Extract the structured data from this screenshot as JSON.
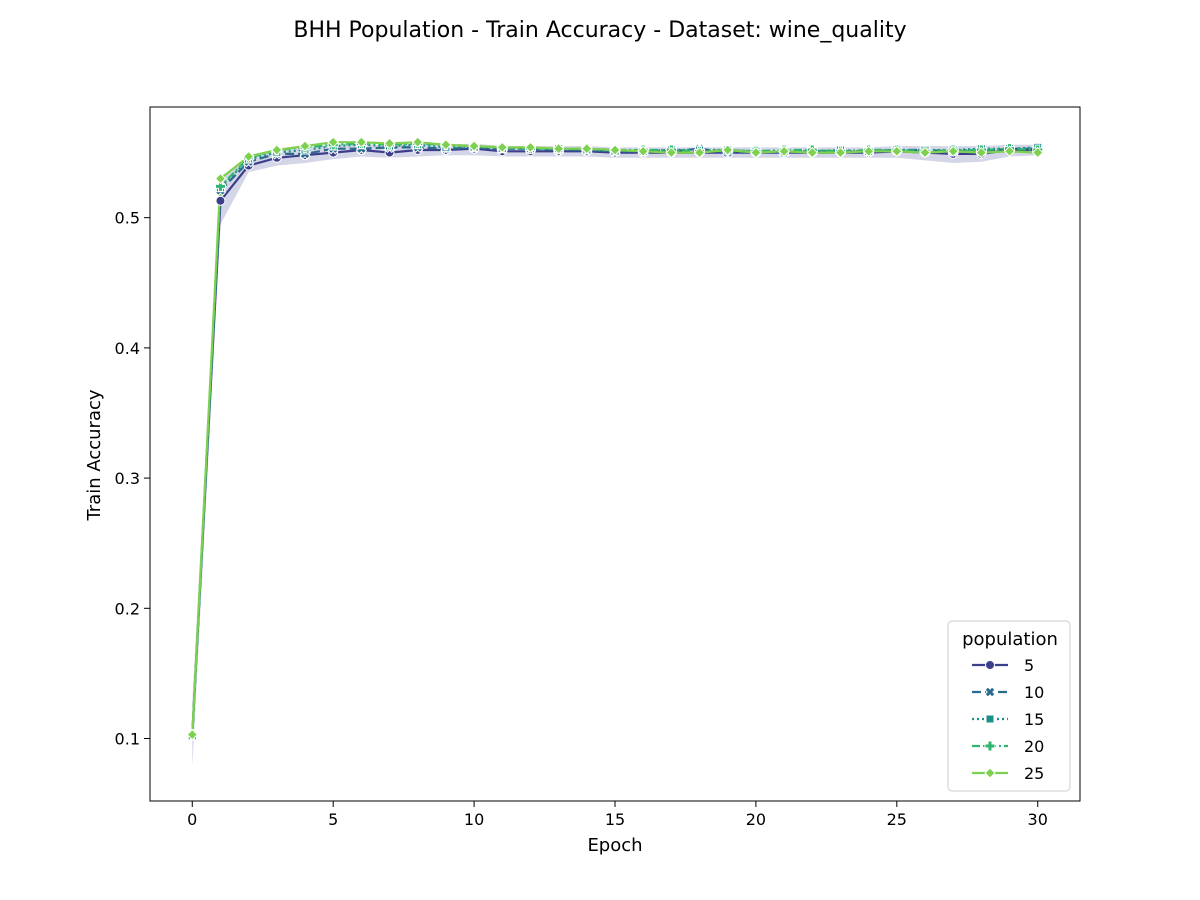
{
  "chart_data": {
    "type": "line",
    "title": "BHH Population - Train Accuracy - Dataset: wine_quality",
    "xlabel": "Epoch",
    "ylabel": "Train Accuracy",
    "xlim": [
      -1.5,
      31.5
    ],
    "ylim": [
      0.052,
      0.585
    ],
    "xticks": [
      0,
      5,
      10,
      15,
      20,
      25,
      30
    ],
    "xtick_labels": [
      "0",
      "5",
      "10",
      "15",
      "20",
      "25",
      "30"
    ],
    "yticks": [
      0.1,
      0.2,
      0.3,
      0.4,
      0.5
    ],
    "ytick_labels": [
      "0.1",
      "0.2",
      "0.3",
      "0.4",
      "0.5"
    ],
    "grid": false,
    "legend": {
      "title": "population",
      "placement": "lower-right"
    },
    "x": [
      0,
      1,
      2,
      3,
      4,
      5,
      6,
      7,
      8,
      9,
      10,
      11,
      12,
      13,
      14,
      15,
      16,
      17,
      18,
      19,
      20,
      21,
      22,
      23,
      24,
      25,
      26,
      27,
      28,
      29,
      30
    ],
    "series": [
      {
        "name": "5",
        "color": "#3b3f8c",
        "dash": "solid",
        "marker": "circle",
        "values": [
          0.103,
          0.513,
          0.54,
          0.546,
          0.548,
          0.55,
          0.552,
          0.55,
          0.552,
          0.552,
          0.553,
          0.551,
          0.551,
          0.551,
          0.551,
          0.55,
          0.55,
          0.55,
          0.55,
          0.55,
          0.55,
          0.55,
          0.55,
          0.55,
          0.55,
          0.551,
          0.55,
          0.549,
          0.549,
          0.552,
          0.552
        ],
        "band_lower": [
          0.078,
          0.495,
          0.535,
          0.54,
          0.542,
          0.545,
          0.547,
          0.546,
          0.547,
          0.548,
          0.548,
          0.547,
          0.547,
          0.547,
          0.547,
          0.546,
          0.546,
          0.546,
          0.546,
          0.546,
          0.546,
          0.546,
          0.546,
          0.546,
          0.546,
          0.546,
          0.544,
          0.542,
          0.543,
          0.547,
          0.548
        ],
        "band_upper": [
          0.128,
          0.53,
          0.546,
          0.551,
          0.554,
          0.556,
          0.557,
          0.555,
          0.557,
          0.556,
          0.557,
          0.555,
          0.555,
          0.555,
          0.555,
          0.554,
          0.554,
          0.554,
          0.554,
          0.554,
          0.554,
          0.554,
          0.554,
          0.554,
          0.554,
          0.555,
          0.555,
          0.555,
          0.555,
          0.556,
          0.556
        ]
      },
      {
        "name": "10",
        "color": "#2a6a8c",
        "dash": "dashed",
        "marker": "x",
        "values": [
          0.102,
          0.521,
          0.543,
          0.549,
          0.549,
          0.553,
          0.553,
          0.554,
          0.554,
          0.553,
          0.554,
          0.553,
          0.553,
          0.552,
          0.552,
          0.551,
          0.551,
          0.551,
          0.553,
          0.55,
          0.551,
          0.55,
          0.551,
          0.551,
          0.551,
          0.552,
          0.552,
          0.551,
          0.551,
          0.553,
          0.553
        ]
      },
      {
        "name": "15",
        "color": "#1f8f8a",
        "dash": "dotted",
        "marker": "square",
        "values": [
          0.102,
          0.523,
          0.545,
          0.55,
          0.552,
          0.555,
          0.556,
          0.555,
          0.556,
          0.554,
          0.554,
          0.553,
          0.553,
          0.553,
          0.552,
          0.551,
          0.551,
          0.552,
          0.552,
          0.552,
          0.551,
          0.551,
          0.551,
          0.552,
          0.551,
          0.552,
          0.552,
          0.552,
          0.553,
          0.553,
          0.554
        ]
      },
      {
        "name": "20",
        "color": "#2eb56f",
        "dash": "dashdot",
        "marker": "plus",
        "values": [
          0.103,
          0.524,
          0.546,
          0.552,
          0.554,
          0.556,
          0.557,
          0.556,
          0.557,
          0.556,
          0.555,
          0.554,
          0.553,
          0.553,
          0.553,
          0.552,
          0.552,
          0.552,
          0.551,
          0.552,
          0.551,
          0.552,
          0.552,
          0.551,
          0.552,
          0.552,
          0.551,
          0.552,
          0.552,
          0.553,
          0.552
        ]
      },
      {
        "name": "25",
        "color": "#7ed14e",
        "dash": "solid",
        "marker": "diamond",
        "values": [
          0.103,
          0.53,
          0.547,
          0.552,
          0.555,
          0.558,
          0.558,
          0.557,
          0.558,
          0.556,
          0.555,
          0.554,
          0.554,
          0.553,
          0.553,
          0.552,
          0.551,
          0.55,
          0.55,
          0.552,
          0.55,
          0.551,
          0.55,
          0.55,
          0.551,
          0.551,
          0.55,
          0.551,
          0.55,
          0.551,
          0.55
        ]
      }
    ]
  }
}
